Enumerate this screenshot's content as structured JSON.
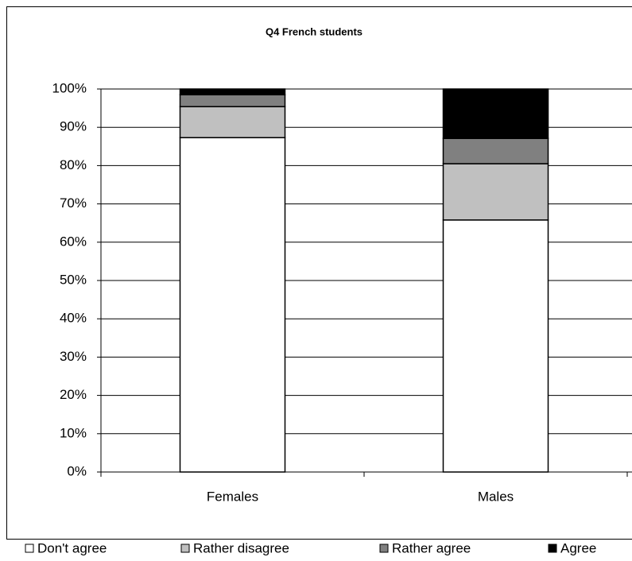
{
  "chart_data": {
    "type": "stacked_bar",
    "title": "Q4 French students",
    "categories": [
      "Females",
      "Males"
    ],
    "series": [
      {
        "name": "Don't agree",
        "color": "#ffffff",
        "values": [
          87.3,
          65.8
        ]
      },
      {
        "name": "Rather disagree",
        "color": "#c0c0c0",
        "values": [
          8.1,
          14.7
        ]
      },
      {
        "name": "Rather agree",
        "color": "#808080",
        "values": [
          3.1,
          6.6
        ]
      },
      {
        "name": "Agree",
        "color": "#000000",
        "values": [
          1.5,
          12.9
        ]
      }
    ],
    "ylim": [
      0,
      100
    ],
    "yticks": [
      {
        "value": 0,
        "label": "0%"
      },
      {
        "value": 10,
        "label": "10%"
      },
      {
        "value": 20,
        "label": "20%"
      },
      {
        "value": 30,
        "label": "30%"
      },
      {
        "value": 40,
        "label": "40%"
      },
      {
        "value": 50,
        "label": "50%"
      },
      {
        "value": 60,
        "label": "60%"
      },
      {
        "value": 70,
        "label": "70%"
      },
      {
        "value": 80,
        "label": "80%"
      },
      {
        "value": 90,
        "label": "90%"
      },
      {
        "value": 100,
        "label": "100%"
      }
    ],
    "grid": true,
    "legend": "bottom"
  }
}
